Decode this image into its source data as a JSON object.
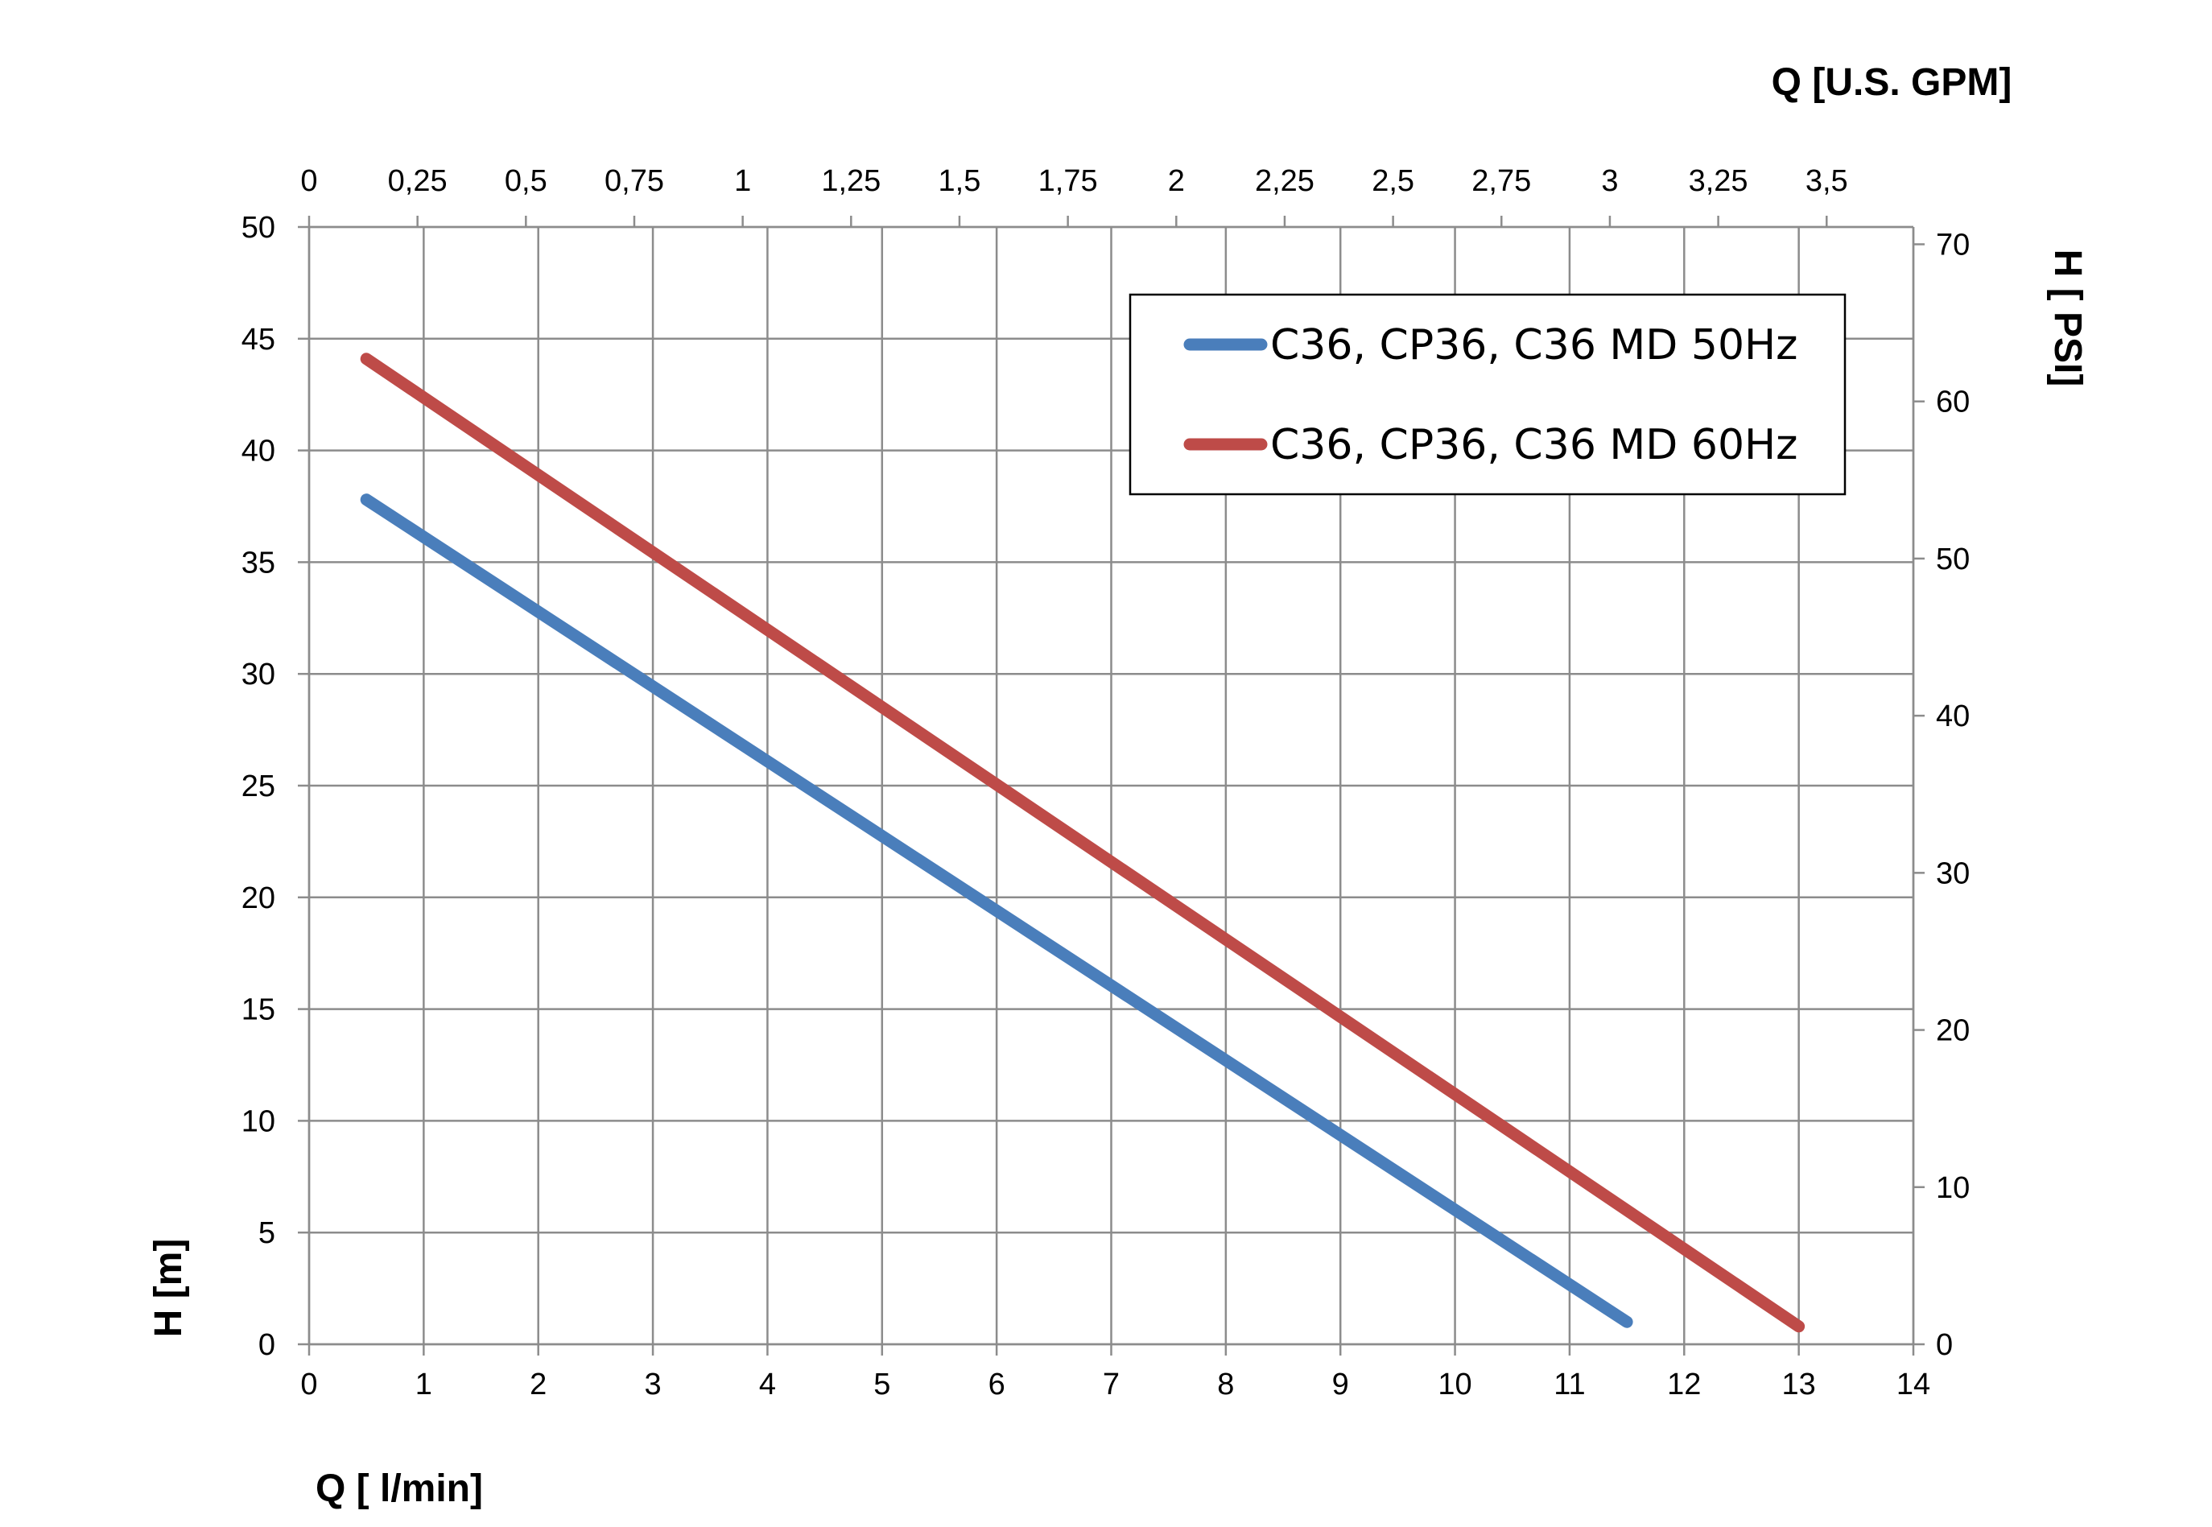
{
  "chart_data": {
    "type": "line",
    "title": "",
    "xlabel": "Q [ l/min]",
    "ylabel": "H [m]",
    "x2label": "Q  [U.S. GPM]",
    "y2label": "H [ PSI]",
    "xlim": [
      0,
      14
    ],
    "ylim": [
      0,
      50
    ],
    "x2lim": [
      0,
      3.7
    ],
    "y2lim": [
      0,
      71.1
    ],
    "x_ticks": [
      "0",
      "1",
      "2",
      "3",
      "4",
      "5",
      "6",
      "7",
      "8",
      "9",
      "10",
      "11",
      "12",
      "13",
      "14"
    ],
    "y_ticks": [
      "0",
      "5",
      "10",
      "15",
      "20",
      "25",
      "30",
      "35",
      "40",
      "45",
      "50"
    ],
    "x2_ticks": [
      "0",
      "0,25",
      "0,5",
      "0,75",
      "1",
      "1,25",
      "1,5",
      "1,75",
      "2",
      "2,25",
      "2,5",
      "2,75",
      "3",
      "3,25",
      "3,5"
    ],
    "y2_ticks": [
      "0",
      "10",
      "20",
      "30",
      "40",
      "50",
      "60",
      "70"
    ],
    "grid": true,
    "legend_position": "top-right",
    "series": [
      {
        "name": "C36, CP36, C36 MD 50Hz",
        "color": "#4a7ebb",
        "x": [
          0.5,
          11.5
        ],
        "y": [
          37.8,
          1.0
        ]
      },
      {
        "name": "C36, CP36, C36 MD 60Hz",
        "color": "#be4b48",
        "x": [
          0.5,
          13.0
        ],
        "y": [
          44.1,
          0.8
        ]
      }
    ]
  }
}
